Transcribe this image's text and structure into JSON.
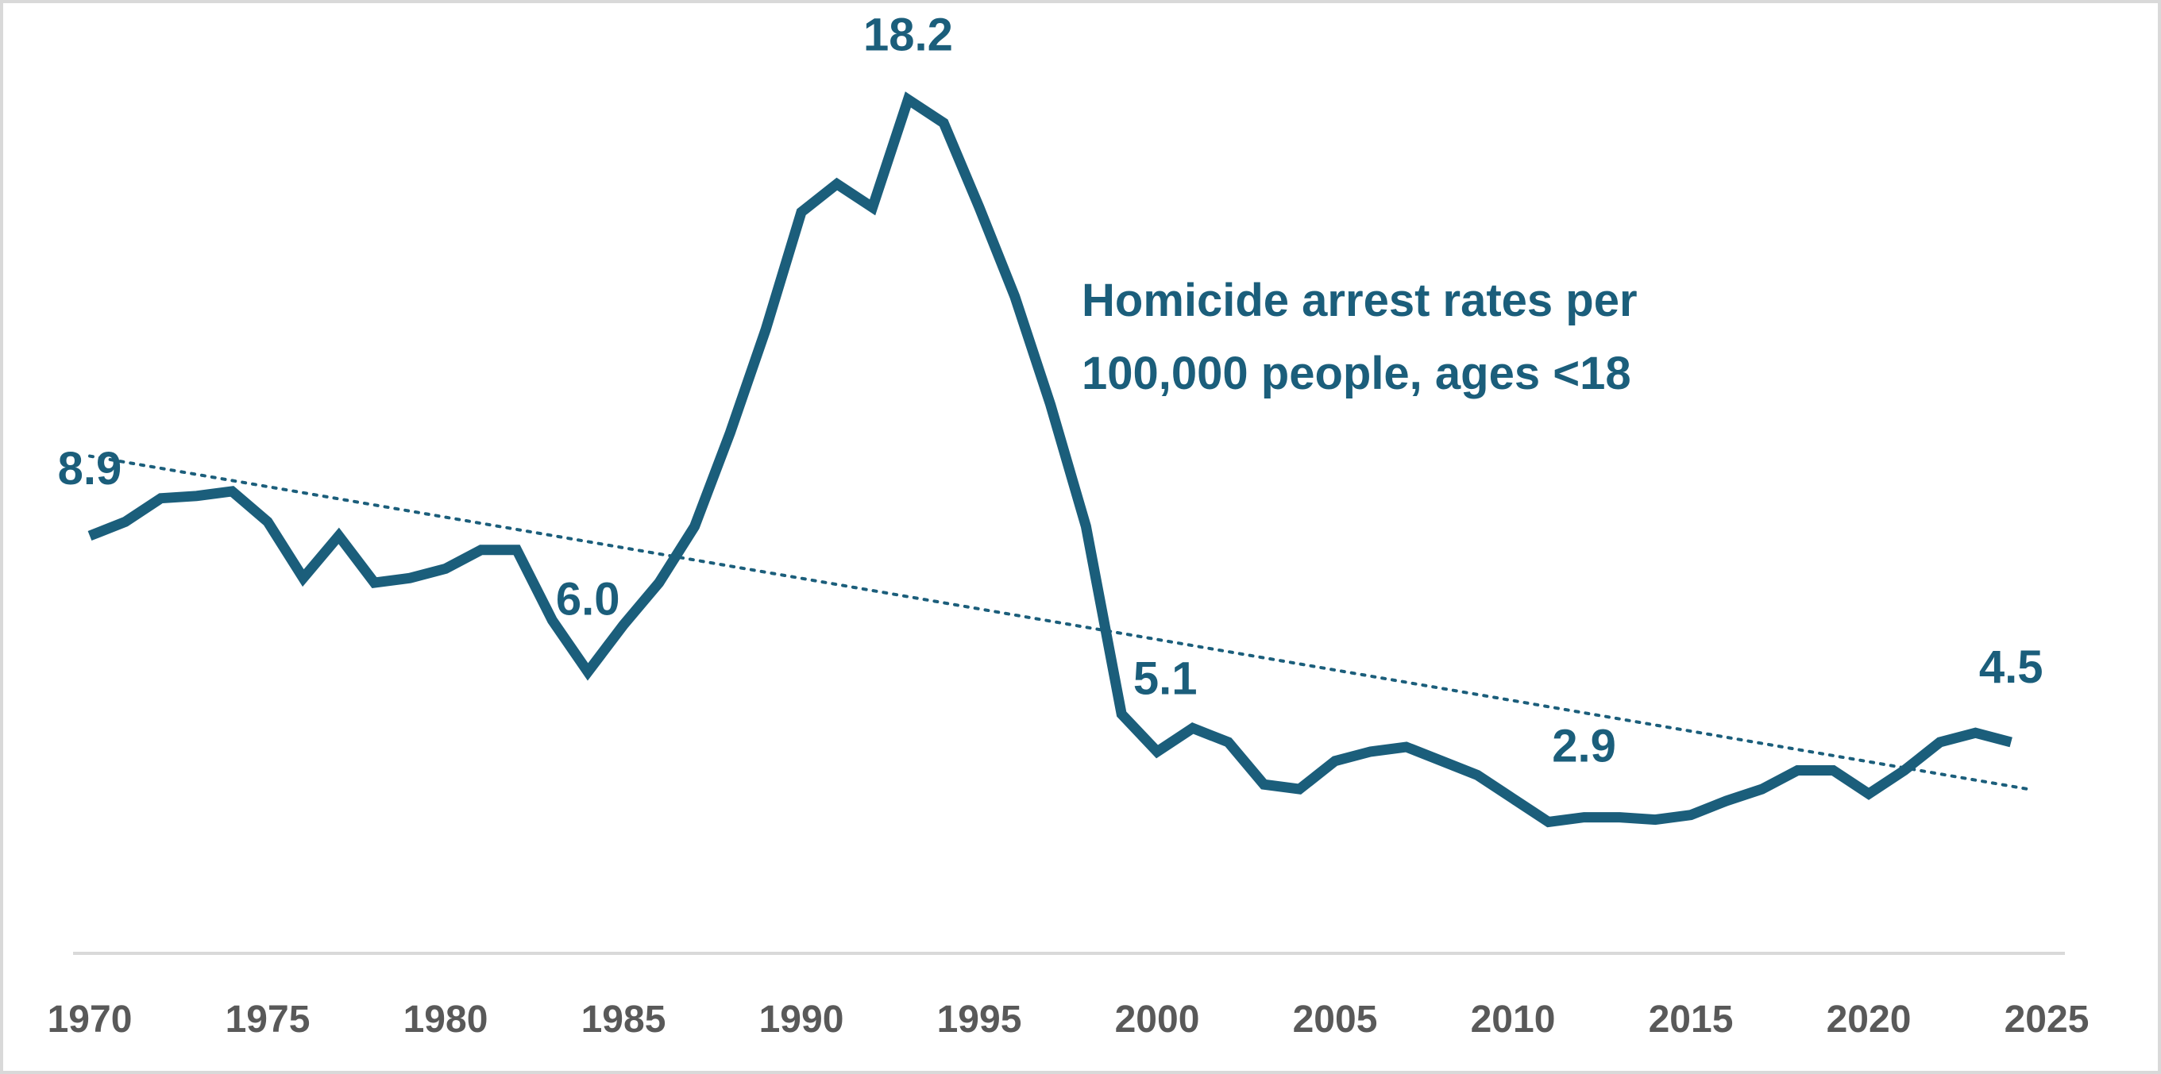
{
  "chart_data": {
    "type": "line",
    "title": "",
    "xlabel": "",
    "ylabel": "",
    "xlim": [
      1970,
      2025
    ],
    "ylim": [
      0,
      20
    ],
    "x_ticks": [
      1970,
      1975,
      1980,
      1985,
      1990,
      1995,
      2000,
      2005,
      2010,
      2015,
      2020,
      2025
    ],
    "grid": false,
    "colors": {
      "series": "#1b5e7b",
      "axis": "#d9d9d9",
      "ticks": "#595959"
    },
    "annotation": [
      "Homicide arrest rates per",
      "100,000 people, ages <18"
    ],
    "series": [
      {
        "name": "Homicide arrest rates per 100,000 people, ages <18",
        "x": [
          1970,
          1971,
          1972,
          1973,
          1974,
          1975,
          1976,
          1977,
          1978,
          1979,
          1980,
          1981,
          1982,
          1983,
          1984,
          1985,
          1986,
          1987,
          1988,
          1989,
          1990,
          1991,
          1992,
          1993,
          1994,
          1995,
          1996,
          1997,
          1998,
          1999,
          2000,
          2001,
          2002,
          2003,
          2004,
          2005,
          2006,
          2007,
          2008,
          2009,
          2010,
          2011,
          2012,
          2013,
          2014,
          2015,
          2016,
          2017,
          2018,
          2019,
          2020,
          2021,
          2022,
          2023,
          2024
        ],
        "values": [
          8.9,
          9.2,
          9.7,
          9.75,
          9.85,
          9.2,
          8.0,
          8.9,
          7.9,
          8.0,
          8.2,
          8.6,
          8.6,
          7.1,
          6.0,
          7.0,
          7.9,
          9.1,
          11.1,
          13.3,
          15.8,
          16.4,
          15.9,
          18.2,
          17.7,
          15.9,
          14.0,
          11.7,
          9.1,
          5.1,
          4.3,
          4.8,
          4.5,
          3.6,
          3.5,
          4.1,
          4.3,
          4.4,
          4.1,
          3.8,
          3.3,
          2.8,
          2.9,
          2.9,
          2.85,
          2.95,
          3.25,
          3.5,
          3.9,
          3.9,
          3.4,
          3.9,
          4.5,
          4.7,
          4.5
        ]
      },
      {
        "name": "Linear trend",
        "style": "dotted",
        "x": [
          1970,
          2024
        ],
        "values": [
          10.6,
          3.5
        ]
      }
    ],
    "data_labels": [
      {
        "x": 1970,
        "value": 8.9,
        "text": "8.9"
      },
      {
        "x": 1984,
        "value": 6.0,
        "text": "6.0"
      },
      {
        "x": 1993,
        "value": 18.2,
        "text": "18.2"
      },
      {
        "x": 1999,
        "value": 5.1,
        "text": "5.1"
      },
      {
        "x": 2012,
        "value": 2.9,
        "text": "2.9"
      },
      {
        "x": 2024,
        "value": 4.5,
        "text": "4.5"
      }
    ]
  }
}
